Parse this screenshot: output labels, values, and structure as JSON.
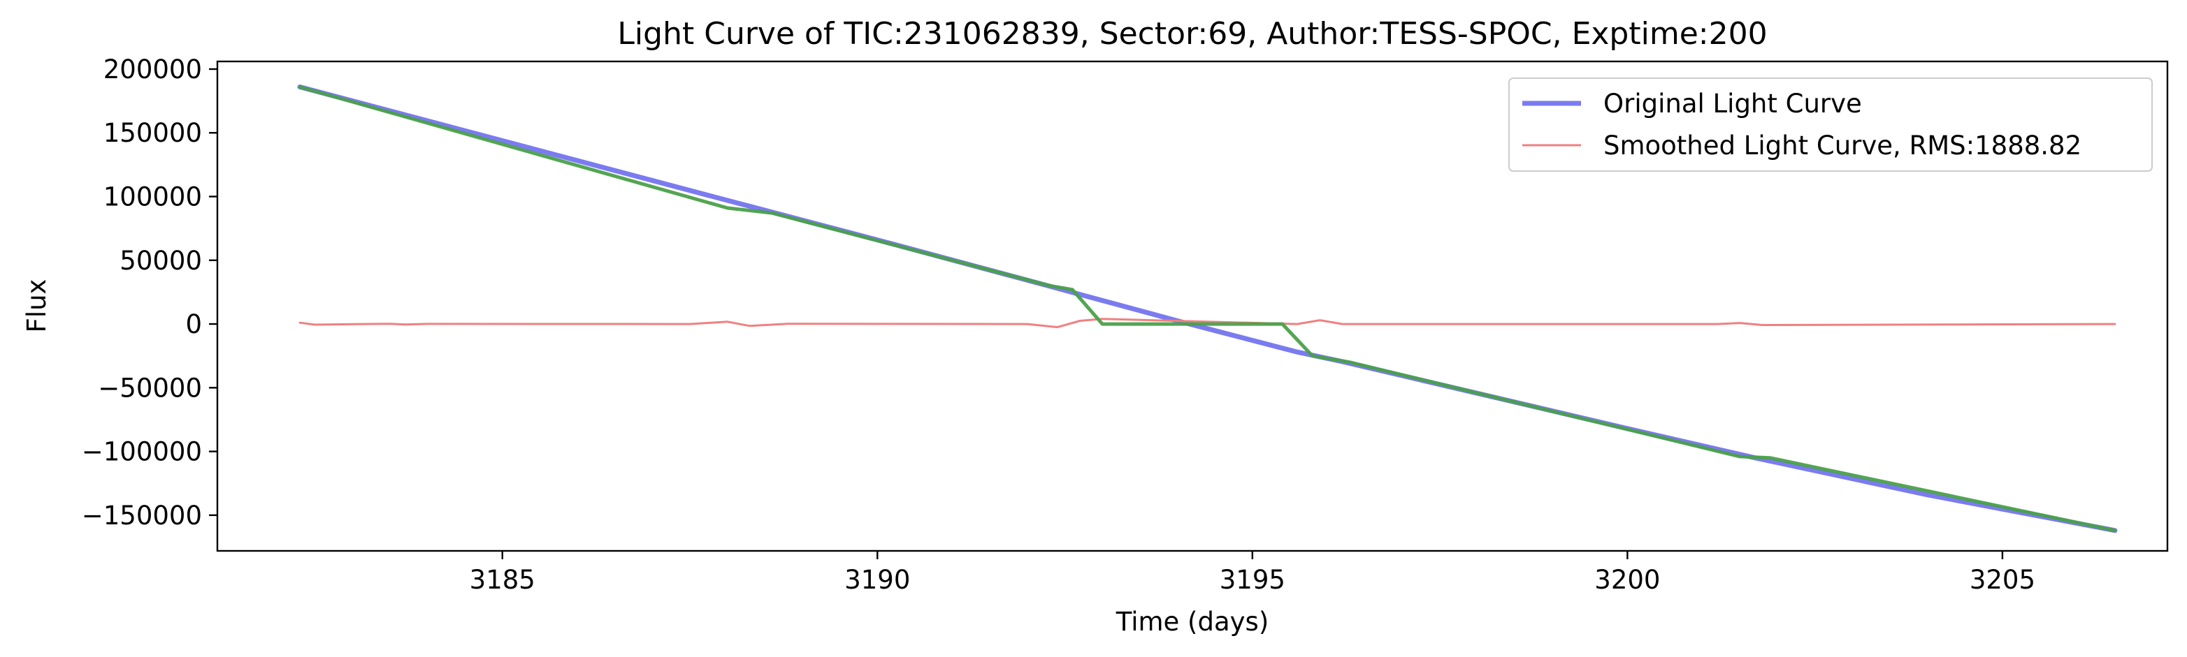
{
  "chart_data": {
    "type": "line",
    "title": "Light Curve of TIC:231062839, Sector:69, Author:TESS-SPOC, Exptime:200",
    "xlabel": "Time (days)",
    "ylabel": "Flux",
    "xlim": [
      3181.2,
      3207.2
    ],
    "ylim": [
      -178000,
      206000
    ],
    "xticks": [
      3185,
      3190,
      3195,
      3200,
      3205
    ],
    "xtick_labels": [
      "3185",
      "3190",
      "3195",
      "3200",
      "3205"
    ],
    "yticks": [
      200000,
      150000,
      100000,
      50000,
      0,
      -50000,
      -100000,
      -150000
    ],
    "ytick_labels": [
      "200000",
      "150000",
      "100000",
      "50000",
      "0",
      "−50000",
      "−100000",
      "−150000"
    ],
    "grid": false,
    "legend_position": "top-right",
    "series": [
      {
        "name": "Original Light Curve",
        "color": "#7b7bf0",
        "legend": true,
        "x": [
          3182.3,
          3188.0,
          3190.0,
          3192.4,
          3194.0,
          3195.6,
          3196.2,
          3200.0,
          3201.7,
          3204.0,
          3206.5
        ],
        "y": [
          186000,
          97000,
          66000,
          28000,
          2500,
          -22000,
          -29500,
          -82000,
          -105000,
          -134000,
          -162000
        ]
      },
      {
        "name": "Smoothed Light Curve, RMS:1888.82",
        "color": "#f08080",
        "legend": true,
        "x": [
          3182.3,
          3182.5,
          3183.5,
          3183.7,
          3184.0,
          3187.5,
          3188.0,
          3188.3,
          3188.8,
          3192.0,
          3192.4,
          3192.7,
          3193.0,
          3195.6,
          3195.9,
          3196.2,
          3201.2,
          3201.5,
          3201.8,
          3206.5
        ],
        "y": [
          1000,
          -500,
          200,
          -400,
          100,
          0,
          1800,
          -1500,
          200,
          0,
          -2500,
          2500,
          4000,
          0,
          3000,
          0,
          0,
          800,
          -800,
          0
        ]
      },
      {
        "name": "Interpolated Light Curve",
        "color": "#4aa04a",
        "legend": false,
        "x": [
          3182.3,
          3188.0,
          3188.6,
          3192.3,
          3192.6,
          3193.0,
          3195.4,
          3195.8,
          3196.3,
          3201.5,
          3201.9,
          3206.5
        ],
        "y": [
          186000,
          91000,
          87000,
          30000,
          27000,
          0,
          0,
          -25000,
          -30000,
          -104000,
          -105000,
          -162000
        ]
      }
    ]
  }
}
